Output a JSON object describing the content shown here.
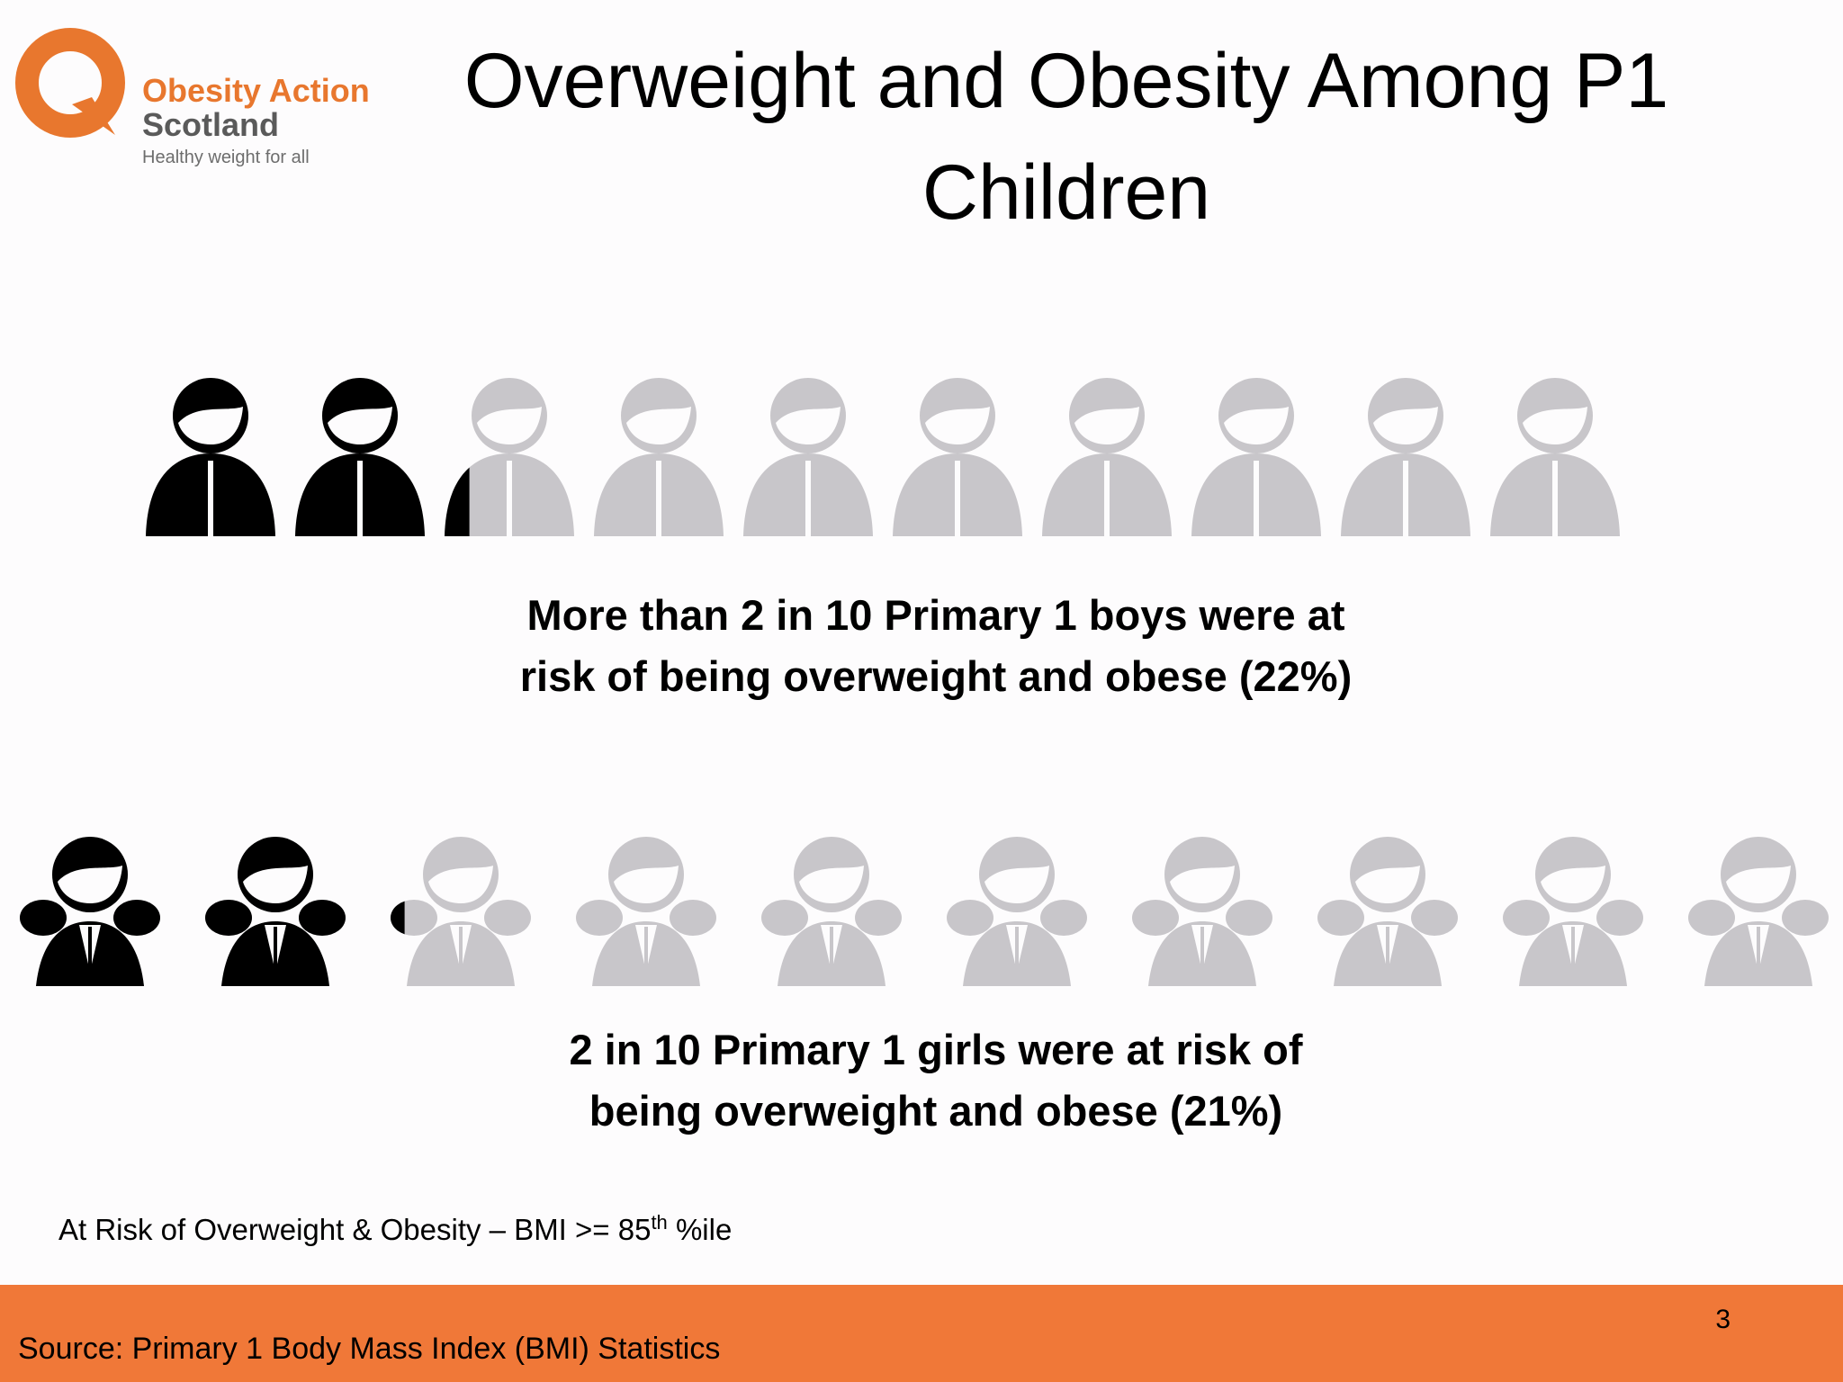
{
  "colors": {
    "accent": "#f07838",
    "filled": "#000000",
    "empty": "#c8c6ca",
    "logo_orange": "#e8772e"
  },
  "logo": {
    "icon": "q-logo-icon",
    "name_line1": "Obesity Action",
    "name_line2": "Scotland",
    "tagline": "Healthy weight for all"
  },
  "title": {
    "line1": "Overweight and Obesity Among P1",
    "line2": "Children"
  },
  "boys": {
    "icon": "boy-icon",
    "count": 10,
    "percent": 22,
    "caption_line1": "More than 2 in 10 Primary 1 boys were at",
    "caption_line2": "risk of being overweight and obese (22%)"
  },
  "girls": {
    "icon": "girl-icon",
    "count": 10,
    "percent": 21,
    "caption_line1": "2 in 10 Primary 1 girls were at risk of",
    "caption_line2": "being overweight and obese (21%)"
  },
  "note": {
    "text": "At Risk of Overweight & Obesity – BMI >= 85",
    "sup": "th",
    "suffix": " %ile"
  },
  "footer": {
    "slide_number": "3",
    "source": "Source: Primary 1 Body Mass Index (BMI) Statistics"
  }
}
